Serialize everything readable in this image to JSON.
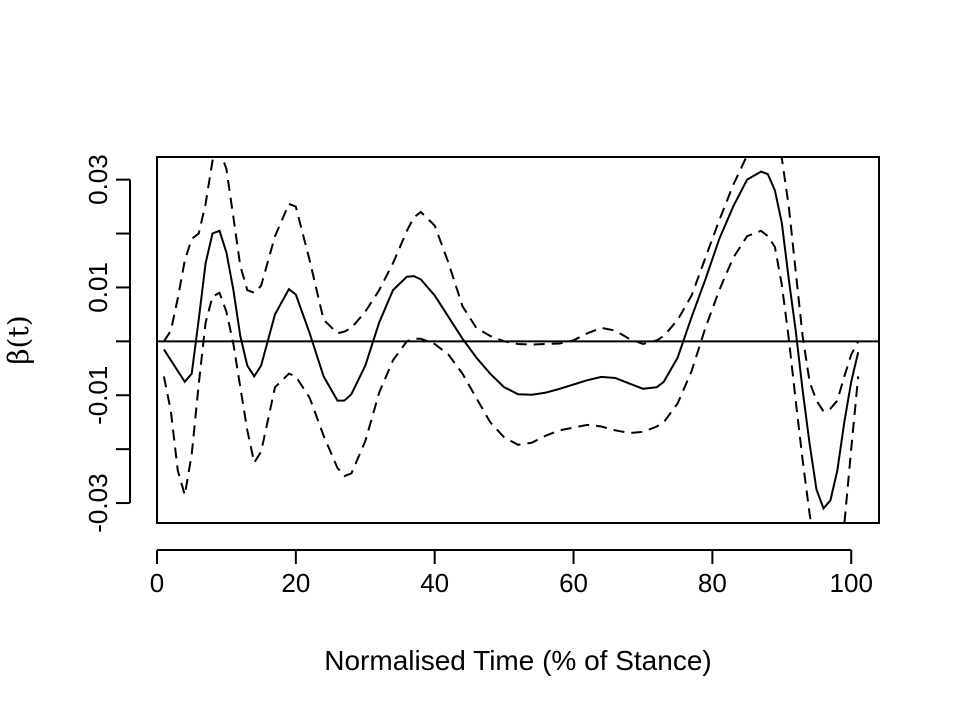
{
  "chart_data": {
    "type": "line",
    "title": "",
    "xlabel": "Normalised Time (% of Stance)",
    "ylabel": "β(t)",
    "xlim": [
      0,
      104
    ],
    "ylim": [
      -0.0337,
      0.0342
    ],
    "x_ticks": [
      0,
      20,
      40,
      60,
      80,
      100
    ],
    "x_tick_labels": [
      "0",
      "20",
      "40",
      "60",
      "80",
      "100"
    ],
    "y_ticks": [
      -0.03,
      -0.01,
      0.01,
      0.03
    ],
    "y_tick_labels": [
      "-0.03",
      "-0.01",
      "0.01",
      "0.03"
    ],
    "y_minor_ticks": [
      -0.02,
      0.0,
      0.02
    ],
    "reference_line_y": 0,
    "grid": false,
    "legend": "none",
    "series": [
      {
        "style": "solid",
        "x": [
          1,
          3,
          4,
          5,
          6,
          7,
          8,
          9,
          10,
          11,
          12,
          13,
          14,
          15,
          17,
          19,
          20,
          22,
          24,
          26,
          27,
          28,
          30,
          32,
          34,
          36,
          37,
          38,
          40,
          42,
          44,
          46,
          48,
          50,
          52,
          54,
          56,
          58,
          60,
          62,
          64,
          66,
          68,
          70,
          72,
          73,
          75,
          77,
          79,
          81,
          83,
          85,
          87,
          88,
          89,
          90,
          91,
          92,
          93,
          94,
          95,
          96,
          97,
          98,
          99,
          100,
          101
        ],
        "y": [
          -0.0015,
          -0.0055,
          -0.0075,
          -0.006,
          0.004,
          0.0145,
          0.02,
          0.0205,
          0.0165,
          0.0095,
          0.001,
          -0.0045,
          -0.0065,
          -0.0045,
          0.005,
          0.0097,
          0.0087,
          0.0015,
          -0.0065,
          -0.011,
          -0.011,
          -0.0098,
          -0.0045,
          0.0035,
          0.0095,
          0.012,
          0.0121,
          0.0115,
          0.0085,
          0.0045,
          0.0005,
          -0.003,
          -0.006,
          -0.0085,
          -0.0098,
          -0.0099,
          -0.0095,
          -0.0088,
          -0.008,
          -0.0072,
          -0.0066,
          -0.0068,
          -0.0078,
          -0.0088,
          -0.0085,
          -0.0075,
          -0.003,
          0.0045,
          0.0115,
          0.019,
          0.025,
          0.03,
          0.0315,
          0.031,
          0.028,
          0.022,
          0.0115,
          0.002,
          -0.009,
          -0.019,
          -0.0275,
          -0.031,
          -0.0295,
          -0.024,
          -0.015,
          -0.0075,
          -0.002
        ]
      },
      {
        "style": "dashed",
        "x": [
          1,
          2,
          3,
          4,
          5,
          6,
          7,
          8,
          9,
          10,
          11,
          12,
          13,
          14,
          15,
          17,
          19,
          20,
          22,
          24,
          26,
          27,
          28,
          30,
          32,
          34,
          36,
          37,
          38,
          40,
          42,
          44,
          46,
          48,
          50,
          52,
          54,
          56,
          58,
          60,
          62,
          64,
          66,
          68,
          70,
          72,
          73,
          75,
          77,
          79,
          81,
          83,
          85,
          87,
          88,
          89,
          90,
          91,
          92,
          93,
          94,
          95,
          96,
          97,
          98,
          99,
          100,
          101
        ],
        "y": [
          0.0,
          0.002,
          0.008,
          0.015,
          0.019,
          0.02,
          0.0255,
          0.0335,
          0.0355,
          0.032,
          0.023,
          0.014,
          0.0095,
          0.009,
          0.0103,
          0.0195,
          0.0255,
          0.025,
          0.015,
          0.004,
          0.0015,
          0.0018,
          0.0025,
          0.0055,
          0.0095,
          0.0145,
          0.0205,
          0.023,
          0.024,
          0.0215,
          0.0145,
          0.0065,
          0.0025,
          0.001,
          0.0,
          -0.0005,
          -0.0006,
          -0.0005,
          -0.0004,
          0.0002,
          0.0015,
          0.0025,
          0.002,
          0.0005,
          -0.0005,
          0.0002,
          0.001,
          0.004,
          0.0085,
          0.0155,
          0.0225,
          0.029,
          0.0345,
          0.0375,
          0.039,
          0.037,
          0.034,
          0.025,
          0.013,
          0.001,
          -0.0075,
          -0.011,
          -0.013,
          -0.0125,
          -0.011,
          -0.0065,
          -0.0025,
          0.0
        ]
      },
      {
        "style": "dashed",
        "x": [
          1,
          2,
          3,
          4,
          5,
          6,
          7,
          8,
          9,
          10,
          11,
          12,
          13,
          14,
          15,
          17,
          19,
          20,
          22,
          24,
          26,
          27,
          28,
          30,
          32,
          34,
          36,
          37,
          38,
          40,
          42,
          44,
          46,
          48,
          50,
          52,
          54,
          56,
          58,
          60,
          62,
          64,
          66,
          68,
          70,
          72,
          73,
          75,
          77,
          79,
          81,
          83,
          85,
          87,
          88,
          89,
          90,
          91,
          92,
          93,
          94,
          95,
          96,
          97,
          98,
          99,
          100,
          101
        ],
        "y": [
          -0.0065,
          -0.013,
          -0.024,
          -0.0285,
          -0.021,
          -0.008,
          0.0035,
          0.0083,
          0.009,
          0.0055,
          -0.0005,
          -0.0085,
          -0.0165,
          -0.0225,
          -0.0205,
          -0.0085,
          -0.006,
          -0.0065,
          -0.0105,
          -0.0175,
          -0.0235,
          -0.025,
          -0.0245,
          -0.0185,
          -0.0095,
          -0.0035,
          0.0,
          0.0005,
          0.0005,
          -0.0005,
          -0.0025,
          -0.006,
          -0.0105,
          -0.015,
          -0.0178,
          -0.0192,
          -0.0188,
          -0.0175,
          -0.0165,
          -0.016,
          -0.0155,
          -0.0158,
          -0.0165,
          -0.017,
          -0.0168,
          -0.0158,
          -0.015,
          -0.0115,
          -0.0055,
          0.0025,
          0.0095,
          0.0155,
          0.0195,
          0.0205,
          0.0195,
          0.0175,
          0.0105,
          0.0005,
          -0.011,
          -0.022,
          -0.032,
          -0.04,
          -0.044,
          -0.045,
          -0.042,
          -0.034,
          -0.02,
          -0.0065
        ]
      }
    ]
  }
}
